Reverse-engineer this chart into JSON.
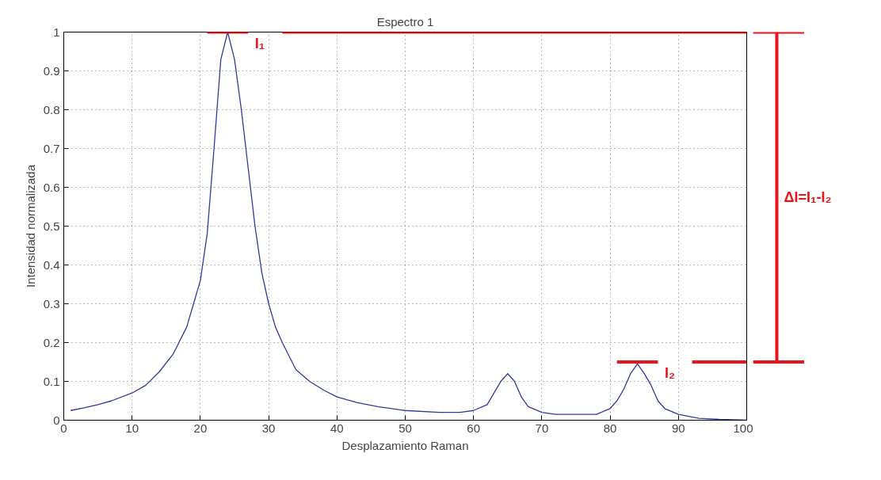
{
  "chart_data": {
    "type": "line",
    "title": "Espectro 1",
    "xlabel": "Desplazamiento Raman",
    "ylabel": "Intensidad normalizada",
    "x": [
      1,
      3,
      5,
      7,
      10,
      12,
      14,
      16,
      18,
      19,
      20,
      21,
      22,
      23,
      24,
      25,
      26,
      27,
      28,
      29,
      30,
      31,
      32,
      34,
      36,
      38,
      40,
      43,
      46,
      50,
      55,
      58,
      60,
      62,
      63,
      64,
      65,
      66,
      67,
      68,
      70,
      72,
      75,
      78,
      80,
      81,
      82,
      83,
      84,
      85,
      86,
      87,
      88,
      90,
      93,
      96,
      100
    ],
    "series": [
      {
        "color": "#2e3a9c",
        "values": [
          0.025,
          0.032,
          0.04,
          0.05,
          0.07,
          0.09,
          0.125,
          0.17,
          0.24,
          0.3,
          0.36,
          0.48,
          0.7,
          0.93,
          1.0,
          0.93,
          0.8,
          0.65,
          0.5,
          0.38,
          0.3,
          0.24,
          0.2,
          0.13,
          0.1,
          0.078,
          0.06,
          0.045,
          0.035,
          0.025,
          0.02,
          0.02,
          0.025,
          0.04,
          0.07,
          0.1,
          0.12,
          0.1,
          0.06,
          0.035,
          0.02,
          0.015,
          0.015,
          0.015,
          0.03,
          0.05,
          0.08,
          0.12,
          0.145,
          0.12,
          0.09,
          0.05,
          0.03,
          0.015,
          0.005,
          0.002,
          0.0
        ]
      }
    ],
    "xlim": [
      0,
      100
    ],
    "xticks": [
      0,
      10,
      20,
      30,
      40,
      50,
      60,
      70,
      80,
      90,
      100
    ],
    "ylim": [
      0,
      1
    ],
    "yticks": [
      0,
      0.1,
      0.2,
      0.3,
      0.4,
      0.5,
      0.6,
      0.7,
      0.8,
      0.9,
      1
    ],
    "grid": true,
    "line_style": "solid",
    "annotations": [
      {
        "text": "I₁",
        "x": 24,
        "y": 1
      },
      {
        "text": "I₂",
        "x": 84,
        "y": 0.15
      },
      "ΔI=I₁-I₂"
    ]
  }
}
